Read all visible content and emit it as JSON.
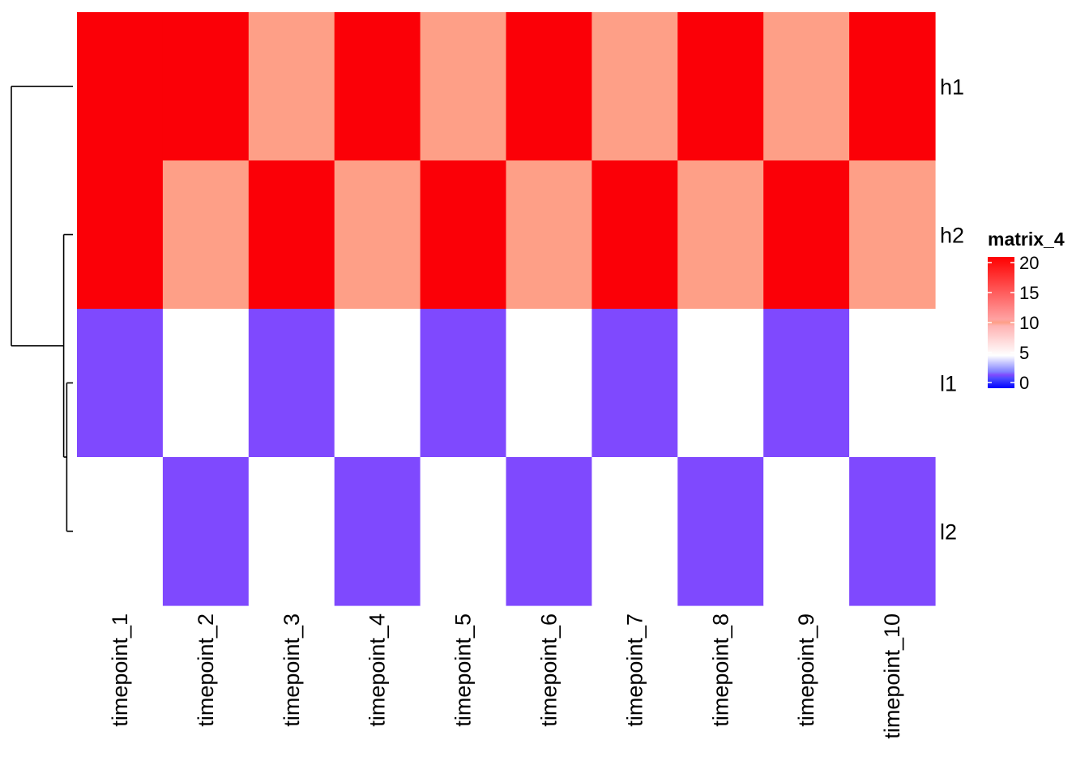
{
  "chart_data": {
    "type": "heatmap",
    "rows": [
      "h1",
      "h2",
      "l1",
      "l2"
    ],
    "columns": [
      "timepoint_1",
      "timepoint_2",
      "timepoint_3",
      "timepoint_4",
      "timepoint_5",
      "timepoint_6",
      "timepoint_7",
      "timepoint_8",
      "timepoint_9",
      "timepoint_10"
    ],
    "values": [
      [
        20,
        20,
        10,
        20,
        10,
        20,
        10,
        20,
        10,
        20
      ],
      [
        20,
        10,
        20,
        10,
        20,
        10,
        20,
        10,
        20,
        10
      ],
      [
        2,
        5,
        2,
        5,
        2,
        5,
        2,
        5,
        2,
        5
      ],
      [
        5,
        2,
        5,
        2,
        5,
        2,
        5,
        2,
        5,
        2
      ]
    ],
    "color_scale": {
      "stops": [
        {
          "value": 0,
          "color": "#0000FF"
        },
        {
          "value": 5,
          "color": "#FFFFFF"
        },
        {
          "value": 20,
          "color": "#FF0000"
        }
      ],
      "rendered_colors": {
        "20": "#FB0007",
        "10": "#FE9F87",
        "5": "#FFFFFF",
        "2": "#7F49FE"
      }
    },
    "legend": {
      "title": "matrix_4",
      "ticks": [
        0,
        5,
        10,
        15,
        20
      ],
      "placement": "right"
    },
    "dendrogram": {
      "side": "left",
      "merges": [
        {
          "members": [
            "l1",
            "l2"
          ],
          "height": 0.1
        },
        {
          "members": [
            "h2",
            [
              "l1",
              "l2"
            ]
          ],
          "height": 0.15
        },
        {
          "members": [
            "h1",
            [
              "h2",
              [
                "l1",
                "l2"
              ]
            ]
          ],
          "height": 1.0
        }
      ]
    }
  }
}
